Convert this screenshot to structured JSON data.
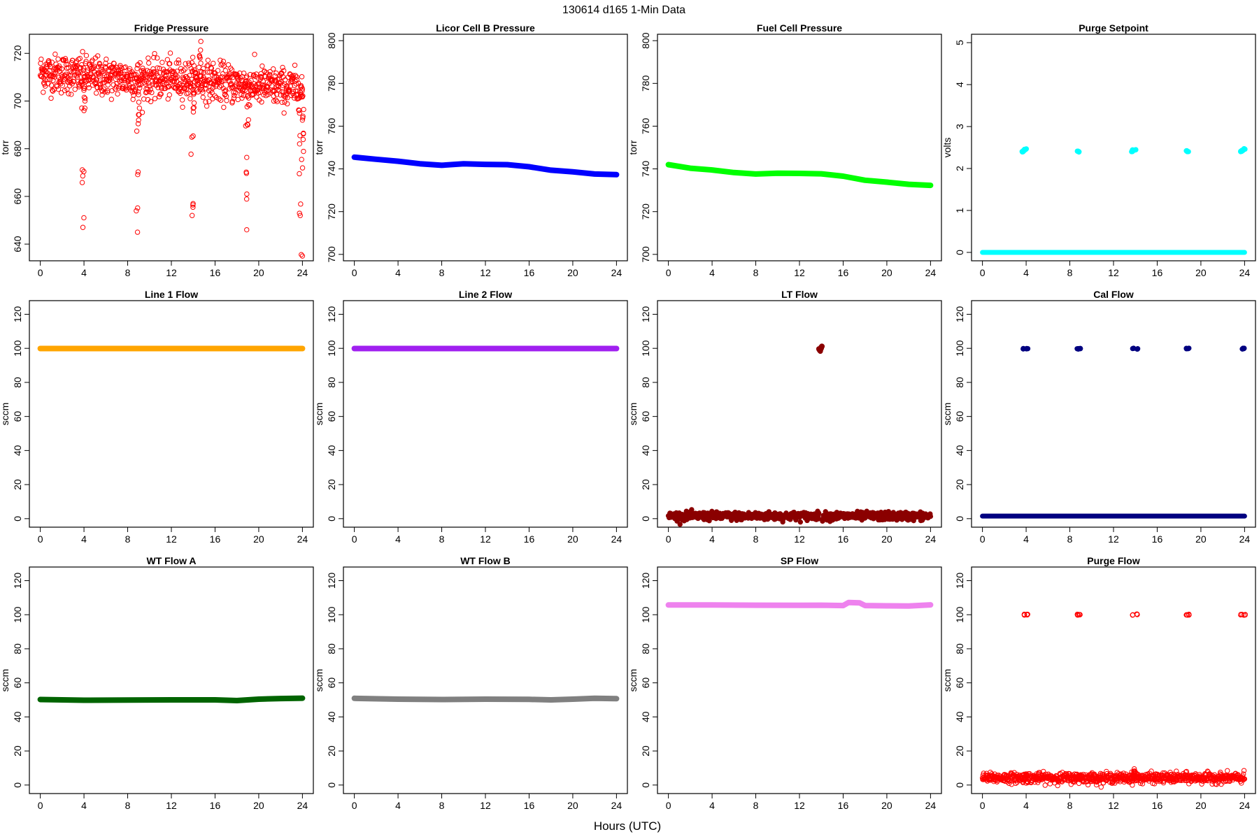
{
  "figure": {
    "main_title": "130614   d165   1-Min Data",
    "xlabel": "Hours (UTC)"
  },
  "chart_data": [
    {
      "name": "Fridge Pressure",
      "type": "scatter",
      "ylabel": "torr",
      "ylim": [
        633,
        728
      ],
      "yticks": [
        640,
        660,
        680,
        700,
        720
      ],
      "xlim": [
        -1,
        25
      ],
      "xticks": [
        0,
        4,
        8,
        12,
        16,
        20,
        24
      ],
      "color": "#ff0000",
      "marker": "open-circle",
      "series": [
        {
          "pattern": "noisy-band",
          "base": [
            [
              0,
              712
            ],
            [
              6,
              710
            ],
            [
              10,
              709
            ],
            [
              14,
              709
            ],
            [
              18,
              707
            ],
            [
              24,
              705
            ]
          ],
          "spread": 5,
          "excursions": [
            [
              3.9,
              647
            ],
            [
              4.0,
              696
            ],
            [
              8.9,
              645
            ],
            [
              9.0,
              692
            ],
            [
              13.9,
              652
            ],
            [
              14.0,
              697
            ],
            [
              14.7,
              725
            ],
            [
              18.9,
              646
            ],
            [
              19.0,
              690
            ],
            [
              23.8,
              652
            ],
            [
              24.0,
              692
            ],
            [
              24.0,
              635
            ]
          ]
        }
      ]
    },
    {
      "name": "Licor Cell B Pressure",
      "type": "line",
      "ylabel": "torr",
      "ylim": [
        697,
        803
      ],
      "yticks": [
        700,
        720,
        740,
        760,
        780,
        800
      ],
      "xlim": [
        -1,
        25
      ],
      "xticks": [
        0,
        4,
        8,
        12,
        16,
        20,
        24
      ],
      "color": "#0000ff",
      "series": [
        {
          "x": [
            0,
            2,
            4,
            6,
            8,
            10,
            12,
            14,
            16,
            18,
            20,
            22,
            24
          ],
          "y": [
            745.5,
            744.5,
            743.6,
            742.4,
            741.7,
            742.4,
            742.1,
            742.0,
            741.0,
            739.4,
            738.6,
            737.6,
            737.3
          ]
        }
      ]
    },
    {
      "name": "Fuel Cell Pressure",
      "type": "line",
      "ylabel": "torr",
      "ylim": [
        697,
        803
      ],
      "yticks": [
        700,
        720,
        740,
        760,
        780,
        800
      ],
      "xlim": [
        -1,
        25
      ],
      "xticks": [
        0,
        4,
        8,
        12,
        16,
        20,
        24
      ],
      "color": "#00ff00",
      "series": [
        {
          "x": [
            0,
            2,
            4,
            6,
            8,
            10,
            12,
            14,
            16,
            18,
            20,
            22,
            24
          ],
          "y": [
            742.0,
            740.3,
            739.5,
            738.3,
            737.6,
            738.0,
            737.9,
            737.7,
            736.6,
            734.7,
            733.8,
            732.8,
            732.3
          ]
        }
      ]
    },
    {
      "name": "Purge Setpoint",
      "type": "scatter",
      "ylabel": "volts",
      "ylim": [
        -0.2,
        5.2
      ],
      "yticks": [
        0,
        1,
        2,
        3,
        4,
        5
      ],
      "xlim": [
        -1,
        25
      ],
      "xticks": [
        0,
        4,
        8,
        12,
        16,
        20,
        24
      ],
      "color": "#00ffff",
      "series": [
        {
          "pattern": "baseline",
          "value": 0.0,
          "x_range": [
            0,
            24
          ]
        },
        {
          "pattern": "clusters",
          "points": [
            [
              3.7,
              2.4
            ],
            [
              3.8,
              2.43
            ],
            [
              3.9,
              2.45
            ],
            [
              4.0,
              2.46
            ],
            [
              8.7,
              2.41
            ],
            [
              8.8,
              2.4
            ],
            [
              13.7,
              2.4
            ],
            [
              13.8,
              2.44
            ],
            [
              14.0,
              2.45
            ],
            [
              18.7,
              2.43
            ],
            [
              18.8,
              2.41
            ],
            [
              23.7,
              2.41
            ],
            [
              23.8,
              2.44
            ],
            [
              24.0,
              2.47
            ]
          ]
        }
      ]
    },
    {
      "name": "Line 1 Flow",
      "type": "line",
      "ylabel": "sccm",
      "ylim": [
        -5,
        128
      ],
      "yticks": [
        0,
        20,
        40,
        60,
        80,
        100,
        120
      ],
      "xlim": [
        -1,
        25
      ],
      "xticks": [
        0,
        4,
        8,
        12,
        16,
        20,
        24
      ],
      "color": "#ffa500",
      "series": [
        {
          "x": [
            0,
            24
          ],
          "y": [
            99.9,
            99.9
          ]
        }
      ]
    },
    {
      "name": "Line 2 Flow",
      "type": "line",
      "ylabel": "sccm",
      "ylim": [
        -5,
        128
      ],
      "yticks": [
        0,
        20,
        40,
        60,
        80,
        100,
        120
      ],
      "xlim": [
        -1,
        25
      ],
      "xticks": [
        0,
        4,
        8,
        12,
        16,
        20,
        24
      ],
      "color": "#a020f0",
      "series": [
        {
          "x": [
            0,
            24
          ],
          "y": [
            99.9,
            99.9
          ]
        }
      ]
    },
    {
      "name": "LT Flow",
      "type": "scatter",
      "ylabel": "sccm",
      "ylim": [
        -5,
        128
      ],
      "yticks": [
        0,
        20,
        40,
        60,
        80,
        100,
        120
      ],
      "xlim": [
        -1,
        25
      ],
      "xticks": [
        0,
        4,
        8,
        12,
        16,
        20,
        24
      ],
      "color": "#8b0000",
      "series": [
        {
          "pattern": "noisy-band",
          "base": [
            [
              0,
              1.5
            ],
            [
              24,
              1.5
            ]
          ],
          "spread": 1.5,
          "gap": [
            13.8,
            14.1
          ]
        },
        {
          "pattern": "clusters",
          "points": [
            [
              13.9,
              98.5
            ],
            [
              14.0,
              100.2
            ],
            [
              14.0,
              101.0
            ],
            [
              13.8,
              99.5
            ]
          ]
        }
      ]
    },
    {
      "name": "Cal Flow",
      "type": "scatter",
      "ylabel": "sccm",
      "ylim": [
        -5,
        128
      ],
      "yticks": [
        0,
        20,
        40,
        60,
        80,
        100,
        120
      ],
      "xlim": [
        -1,
        25
      ],
      "xticks": [
        0,
        4,
        8,
        12,
        16,
        20,
        24
      ],
      "color": "#000080",
      "series": [
        {
          "pattern": "baseline",
          "value": 1.5,
          "x_range": [
            0,
            24
          ]
        },
        {
          "pattern": "clusters",
          "points": [
            [
              3.8,
              99.8
            ],
            [
              4.1,
              99.8
            ],
            [
              8.7,
              99.8
            ],
            [
              8.9,
              99.8
            ],
            [
              13.8,
              99.8
            ],
            [
              14.2,
              99.8
            ],
            [
              18.7,
              99.8
            ],
            [
              18.9,
              99.8
            ],
            [
              23.8,
              99.8
            ],
            [
              24.0,
              99.8
            ]
          ]
        }
      ]
    },
    {
      "name": "WT Flow A",
      "type": "line",
      "ylabel": "sccm",
      "ylim": [
        -5,
        128
      ],
      "yticks": [
        0,
        20,
        40,
        60,
        80,
        100,
        120
      ],
      "xlim": [
        -1,
        25
      ],
      "xticks": [
        0,
        4,
        8,
        12,
        16,
        20,
        24
      ],
      "color": "#006400",
      "series": [
        {
          "x": [
            0,
            4,
            8,
            12,
            16,
            18,
            20,
            22,
            24
          ],
          "y": [
            50.2,
            49.8,
            49.9,
            50.0,
            50.0,
            49.6,
            50.4,
            50.8,
            51.0
          ]
        }
      ]
    },
    {
      "name": "WT Flow B",
      "type": "line",
      "ylabel": "sccm",
      "ylim": [
        -5,
        128
      ],
      "yticks": [
        0,
        20,
        40,
        60,
        80,
        100,
        120
      ],
      "xlim": [
        -1,
        25
      ],
      "xticks": [
        0,
        4,
        8,
        12,
        16,
        20,
        24
      ],
      "color": "#808080",
      "series": [
        {
          "x": [
            0,
            4,
            8,
            12,
            16,
            18,
            20,
            22,
            24
          ],
          "y": [
            50.9,
            50.4,
            50.2,
            50.4,
            50.3,
            50.0,
            50.4,
            50.9,
            50.7
          ]
        }
      ]
    },
    {
      "name": "SP Flow",
      "type": "line",
      "ylabel": "sccm",
      "ylim": [
        -5,
        128
      ],
      "yticks": [
        0,
        20,
        40,
        60,
        80,
        100,
        120
      ],
      "xlim": [
        -1,
        25
      ],
      "xticks": [
        0,
        4,
        8,
        12,
        16,
        20,
        24
      ],
      "color": "#ee82ee",
      "series": [
        {
          "x": [
            0,
            4,
            8,
            12,
            14,
            16,
            16.5,
            17.5,
            18,
            20,
            22,
            24
          ],
          "y": [
            105.7,
            105.7,
            105.6,
            105.5,
            105.6,
            105.4,
            107.2,
            107.0,
            105.4,
            105.2,
            105.1,
            105.8
          ]
        }
      ]
    },
    {
      "name": "Purge Flow",
      "type": "scatter",
      "ylabel": "sccm",
      "ylim": [
        -5,
        128
      ],
      "yticks": [
        0,
        20,
        40,
        60,
        80,
        100,
        120
      ],
      "xlim": [
        -1,
        25
      ],
      "xticks": [
        0,
        4,
        8,
        12,
        16,
        20,
        24
      ],
      "color": "#ff0000",
      "marker": "open-circle",
      "series": [
        {
          "pattern": "noisy-band",
          "base": [
            [
              0,
              4.2
            ],
            [
              24,
              4.2
            ]
          ],
          "spread": 1.8,
          "excursions": [
            [
              13.9,
              9.5
            ],
            [
              13.95,
              8.2
            ],
            [
              4.0,
              6.5
            ],
            [
              9.0,
              6.0
            ]
          ]
        },
        {
          "pattern": "clusters",
          "points": [
            [
              3.8,
              100
            ],
            [
              4.1,
              100
            ],
            [
              8.7,
              100
            ],
            [
              8.9,
              100
            ],
            [
              13.7,
              100
            ],
            [
              14.1,
              100.3
            ],
            [
              18.7,
              100
            ],
            [
              18.9,
              100
            ],
            [
              23.7,
              100
            ],
            [
              24.0,
              100
            ]
          ]
        }
      ]
    }
  ]
}
